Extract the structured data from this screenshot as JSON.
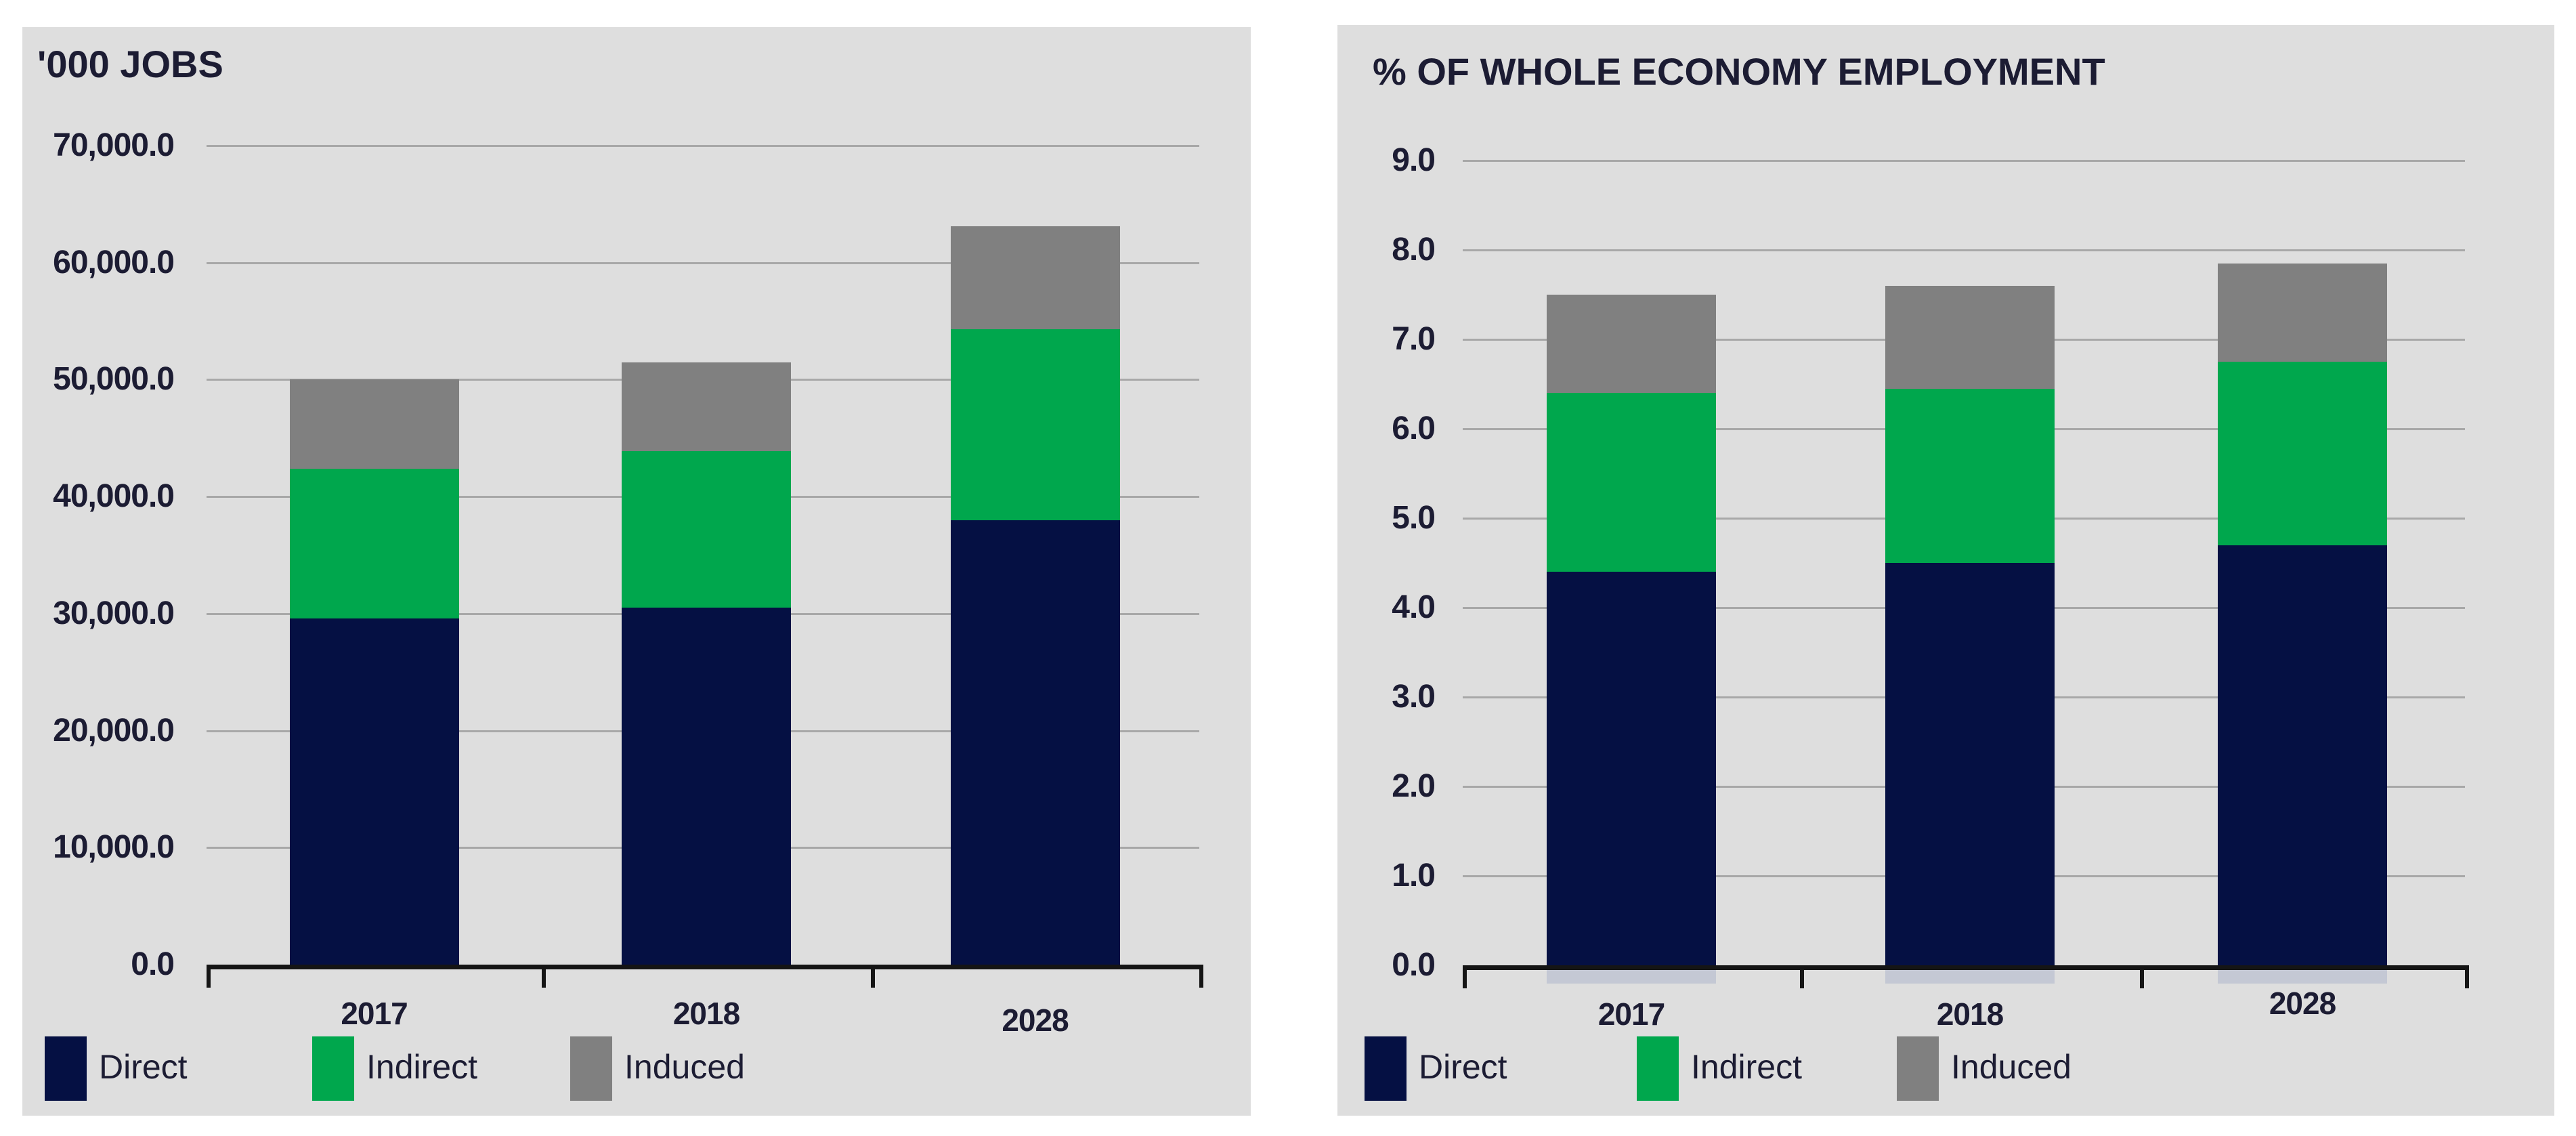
{
  "figure": {
    "description": "Two stacked bar charts of travel and tourism employment contribution",
    "panel_background": "#DEDEDE"
  },
  "colors": {
    "direct": "#051043",
    "indirect": "#00A74D",
    "induced": "#808080",
    "panel_bg": "#DEDEDE",
    "gridline": "#A8A8A8",
    "axis": "#151515",
    "text": "#1C1C33"
  },
  "legend": {
    "labels": [
      "Direct",
      "Indirect",
      "Induced"
    ]
  },
  "chart_data": [
    {
      "type": "bar",
      "stacked": true,
      "title": "'000 JOBS",
      "categories": [
        "2017",
        "2018",
        "2028"
      ],
      "series": [
        {
          "name": "Direct",
          "color": "#051043",
          "values": [
            29600,
            30500,
            38000
          ]
        },
        {
          "name": "Indirect",
          "color": "#00A74D",
          "values": [
            12800,
            13400,
            16300
          ]
        },
        {
          "name": "Induced",
          "color": "#808080",
          "values": [
            7600,
            7600,
            8800
          ]
        }
      ],
      "stack_totals": [
        50000,
        51500,
        63100
      ],
      "ylim": [
        0,
        70000
      ],
      "ytick_step": 10000,
      "ytick_labels_top_to_bottom": [
        "70,000.0",
        "60,000.0",
        "50,000.0",
        "40,000.0",
        "30,000.0",
        "20,000.0",
        "10,000.0",
        "0.0"
      ],
      "grid": true,
      "legend_position": "bottom"
    },
    {
      "type": "bar",
      "stacked": true,
      "title": "% OF WHOLE ECONOMY EMPLOYMENT",
      "categories": [
        "2017",
        "2018",
        "2028"
      ],
      "series": [
        {
          "name": "Direct",
          "color": "#051043",
          "values": [
            4.4,
            4.5,
            4.7
          ]
        },
        {
          "name": "Indirect",
          "color": "#00A74D",
          "values": [
            2.0,
            1.95,
            2.05
          ]
        },
        {
          "name": "Induced",
          "color": "#808080",
          "values": [
            1.1,
            1.15,
            1.1
          ]
        }
      ],
      "stack_totals": [
        7.5,
        7.6,
        7.85
      ],
      "ylim": [
        0,
        9
      ],
      "ytick_step": 1.0,
      "ytick_labels_top_to_bottom": [
        "9.0",
        "8.0",
        "7.0",
        "6.0",
        "5.0",
        "4.0",
        "3.0",
        "2.0",
        "1.0",
        "0.0"
      ],
      "grid": true,
      "legend_position": "bottom"
    }
  ]
}
